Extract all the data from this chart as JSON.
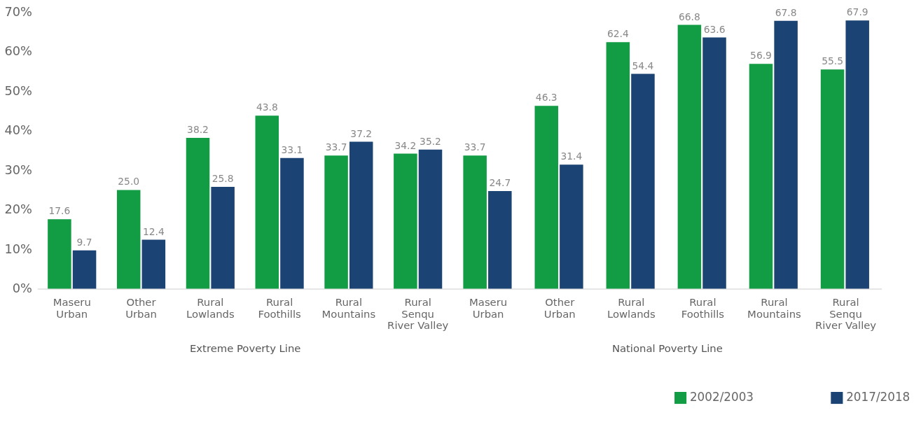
{
  "chart_data": [
    {
      "type": "bar",
      "xlabel": "Extreme Poverty Line",
      "categories": [
        "Maseru\nUrban",
        "Other\nUrban",
        "Rural\nLowlands",
        "Rural\nFoothills",
        "Rural\nMountains",
        "Rural\nSenqu\nRiver Valley"
      ],
      "series": [
        {
          "name": "2002/2003",
          "color": "#129c44",
          "values": [
            17.6,
            25.0,
            38.2,
            43.8,
            33.7,
            34.2
          ],
          "value_labels": [
            "17.6",
            "25.0",
            "38.2",
            "43.8",
            "33.7",
            "34.2"
          ]
        },
        {
          "name": "2017/2018",
          "color": "#1b4373",
          "values": [
            9.7,
            12.4,
            25.8,
            33.1,
            37.2,
            35.2
          ],
          "value_labels": [
            "9.7",
            "12.4",
            "25.8",
            "33.1",
            "37.2",
            "35.2"
          ]
        }
      ],
      "ylim": [
        0,
        70
      ],
      "yticks": [
        {
          "value": 0,
          "label": "0%"
        },
        {
          "value": 10,
          "label": "10%"
        },
        {
          "value": 20,
          "label": "20%"
        },
        {
          "value": 30,
          "label": "30%"
        },
        {
          "value": 40,
          "label": "40%"
        },
        {
          "value": 50,
          "label": "50%"
        },
        {
          "value": 60,
          "label": "60%"
        },
        {
          "value": 70,
          "label": "70%"
        }
      ],
      "legend": "bottom right"
    },
    {
      "type": "bar",
      "xlabel": "National Poverty Line",
      "categories": [
        "Maseru\nUrban",
        "Other\nUrban",
        "Rural\nLowlands",
        "Rural\nFoothills",
        "Rural\nMountains",
        "Rural\nSenqu\nRiver Valley"
      ],
      "series": [
        {
          "name": "2002/2003",
          "color": "#129c44",
          "values": [
            33.7,
            46.3,
            62.4,
            66.8,
            56.9,
            55.5
          ],
          "value_labels": [
            "33.7",
            "46.3",
            "62.4",
            "66.8",
            "56.9",
            "55.5"
          ]
        },
        {
          "name": "2017/2018",
          "color": "#1b4373",
          "values": [
            24.7,
            31.4,
            54.4,
            63.6,
            67.8,
            67.9
          ],
          "value_labels": [
            "24.7",
            "31.4",
            "54.4",
            "63.6",
            "67.8",
            "67.9"
          ]
        }
      ],
      "ylim": [
        0,
        70
      ],
      "tick_labels": "x",
      "legend": "bottom right"
    }
  ]
}
